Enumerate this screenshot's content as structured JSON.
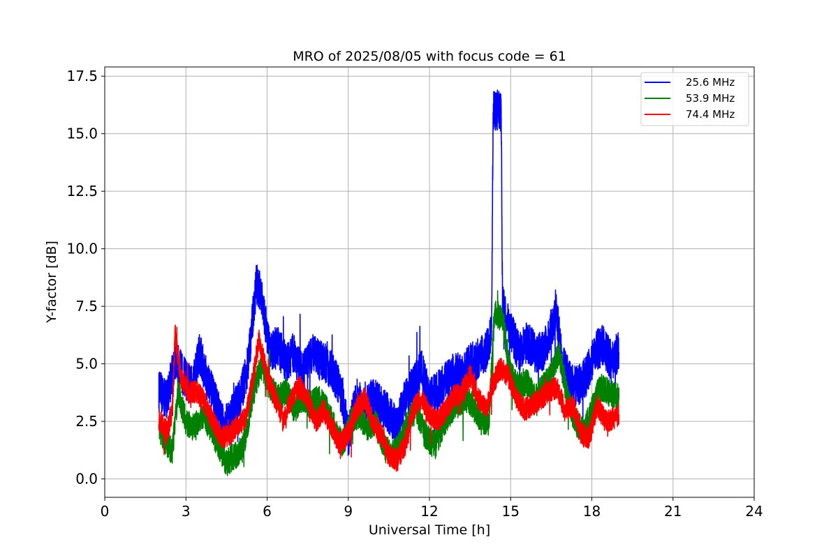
{
  "chart_data": {
    "type": "line",
    "title": "MRO of 2025/08/05 with focus code = 61",
    "xlabel": "Universal Time [h]",
    "ylabel": "Y-factor [dB]",
    "xlim": [
      0,
      24
    ],
    "ylim": [
      -0.8,
      17.9
    ],
    "xticks": [
      0,
      3,
      6,
      9,
      12,
      15,
      18,
      21,
      24
    ],
    "yticks": [
      0.0,
      2.5,
      5.0,
      7.5,
      10.0,
      12.5,
      15.0,
      17.5
    ],
    "xtick_labels": [
      "0",
      "3",
      "6",
      "9",
      "12",
      "15",
      "18",
      "21",
      "24"
    ],
    "ytick_labels": [
      "0.0",
      "2.5",
      "5.0",
      "7.5",
      "10.0",
      "12.5",
      "15.0",
      "17.5"
    ],
    "grid": true,
    "legend_position": "top-right",
    "series": [
      {
        "name": "25.6 MHz",
        "color": "#0000ff",
        "noise": 0.9,
        "points": [
          [
            2.0,
            3.8
          ],
          [
            2.3,
            3.5
          ],
          [
            2.6,
            5.2
          ],
          [
            2.9,
            4.5
          ],
          [
            3.2,
            4.0
          ],
          [
            3.5,
            5.5
          ],
          [
            3.8,
            4.2
          ],
          [
            4.1,
            3.3
          ],
          [
            4.4,
            2.2
          ],
          [
            4.7,
            2.8
          ],
          [
            5.0,
            3.5
          ],
          [
            5.3,
            5.0
          ],
          [
            5.6,
            8.5
          ],
          [
            5.8,
            8.0
          ],
          [
            6.1,
            5.5
          ],
          [
            6.4,
            5.8
          ],
          [
            6.7,
            5.0
          ],
          [
            7.0,
            5.5
          ],
          [
            7.3,
            4.5
          ],
          [
            7.6,
            5.5
          ],
          [
            7.9,
            5.2
          ],
          [
            8.2,
            5.0
          ],
          [
            8.5,
            4.5
          ],
          [
            8.8,
            3.5
          ],
          [
            9.0,
            1.8
          ],
          [
            9.3,
            3.5
          ],
          [
            9.6,
            3.0
          ],
          [
            9.9,
            3.5
          ],
          [
            10.2,
            3.2
          ],
          [
            10.5,
            2.8
          ],
          [
            10.8,
            2.2
          ],
          [
            11.1,
            3.5
          ],
          [
            11.4,
            4.0
          ],
          [
            11.7,
            4.8
          ],
          [
            12.0,
            3.5
          ],
          [
            12.3,
            3.8
          ],
          [
            12.6,
            4.2
          ],
          [
            12.9,
            4.6
          ],
          [
            13.2,
            4.5
          ],
          [
            13.5,
            5.0
          ],
          [
            13.8,
            5.2
          ],
          [
            14.1,
            5.5
          ],
          [
            14.3,
            6.5
          ],
          [
            14.35,
            16.0
          ],
          [
            14.65,
            16.0
          ],
          [
            14.7,
            7.5
          ],
          [
            15.0,
            6.5
          ],
          [
            15.3,
            5.5
          ],
          [
            15.6,
            6.0
          ],
          [
            15.9,
            5.5
          ],
          [
            16.2,
            5.5
          ],
          [
            16.5,
            6.5
          ],
          [
            16.7,
            7.2
          ],
          [
            16.9,
            5.0
          ],
          [
            17.2,
            4.2
          ],
          [
            17.5,
            4.0
          ],
          [
            17.8,
            4.5
          ],
          [
            18.1,
            5.5
          ],
          [
            18.4,
            5.8
          ],
          [
            18.7,
            5.2
          ],
          [
            19.0,
            5.5
          ]
        ]
      },
      {
        "name": "53.9 MHz",
        "color": "#008000",
        "noise": 0.6,
        "points": [
          [
            2.0,
            2.2
          ],
          [
            2.3,
            1.5
          ],
          [
            2.5,
            1.2
          ],
          [
            2.7,
            3.8
          ],
          [
            3.0,
            2.5
          ],
          [
            3.3,
            2.2
          ],
          [
            3.6,
            2.8
          ],
          [
            3.9,
            2.2
          ],
          [
            4.2,
            1.5
          ],
          [
            4.5,
            0.7
          ],
          [
            4.8,
            1.0
          ],
          [
            5.1,
            1.3
          ],
          [
            5.3,
            2.5
          ],
          [
            5.5,
            3.8
          ],
          [
            5.8,
            5.0
          ],
          [
            6.1,
            4.0
          ],
          [
            6.4,
            3.5
          ],
          [
            6.7,
            3.8
          ],
          [
            7.0,
            3.0
          ],
          [
            7.3,
            3.5
          ],
          [
            7.6,
            3.2
          ],
          [
            7.9,
            3.5
          ],
          [
            8.2,
            3.0
          ],
          [
            8.5,
            2.2
          ],
          [
            8.8,
            1.5
          ],
          [
            9.1,
            2.5
          ],
          [
            9.4,
            2.8
          ],
          [
            9.7,
            2.2
          ],
          [
            10.0,
            2.5
          ],
          [
            10.3,
            1.5
          ],
          [
            10.6,
            1.0
          ],
          [
            10.9,
            1.5
          ],
          [
            11.2,
            2.5
          ],
          [
            11.5,
            3.0
          ],
          [
            11.8,
            2.0
          ],
          [
            12.1,
            1.5
          ],
          [
            12.4,
            2.0
          ],
          [
            12.7,
            2.8
          ],
          [
            13.0,
            3.2
          ],
          [
            13.3,
            3.5
          ],
          [
            13.6,
            3.2
          ],
          [
            13.9,
            2.5
          ],
          [
            14.2,
            2.5
          ],
          [
            14.4,
            7.2
          ],
          [
            14.7,
            7.0
          ],
          [
            15.0,
            4.5
          ],
          [
            15.3,
            4.0
          ],
          [
            15.6,
            4.2
          ],
          [
            15.9,
            3.5
          ],
          [
            16.2,
            4.0
          ],
          [
            16.5,
            4.5
          ],
          [
            16.8,
            5.5
          ],
          [
            17.1,
            3.5
          ],
          [
            17.4,
            2.5
          ],
          [
            17.7,
            2.0
          ],
          [
            18.0,
            3.0
          ],
          [
            18.3,
            4.0
          ],
          [
            18.6,
            3.8
          ],
          [
            19.0,
            3.5
          ]
        ]
      },
      {
        "name": "74.4 MHz",
        "color": "#ff0000",
        "noise": 0.5,
        "points": [
          [
            2.0,
            2.6
          ],
          [
            2.3,
            2.0
          ],
          [
            2.5,
            3.0
          ],
          [
            2.6,
            6.3
          ],
          [
            2.8,
            4.5
          ],
          [
            3.1,
            3.8
          ],
          [
            3.4,
            3.8
          ],
          [
            3.7,
            3.3
          ],
          [
            4.0,
            2.5
          ],
          [
            4.3,
            1.8
          ],
          [
            4.6,
            1.9
          ],
          [
            4.9,
            2.3
          ],
          [
            5.2,
            2.6
          ],
          [
            5.5,
            4.5
          ],
          [
            5.7,
            6.0
          ],
          [
            6.0,
            4.5
          ],
          [
            6.3,
            3.5
          ],
          [
            6.6,
            2.5
          ],
          [
            6.9,
            3.5
          ],
          [
            7.2,
            4.0
          ],
          [
            7.5,
            3.5
          ],
          [
            7.8,
            2.5
          ],
          [
            8.1,
            3.0
          ],
          [
            8.4,
            2.2
          ],
          [
            8.7,
            1.5
          ],
          [
            9.0,
            2.0
          ],
          [
            9.3,
            3.0
          ],
          [
            9.6,
            3.5
          ],
          [
            9.9,
            2.5
          ],
          [
            10.2,
            2.0
          ],
          [
            10.5,
            1.0
          ],
          [
            10.8,
            0.8
          ],
          [
            11.1,
            1.5
          ],
          [
            11.4,
            3.0
          ],
          [
            11.7,
            3.5
          ],
          [
            12.0,
            2.8
          ],
          [
            12.3,
            2.5
          ],
          [
            12.6,
            3.0
          ],
          [
            12.9,
            3.6
          ],
          [
            13.2,
            3.8
          ],
          [
            13.5,
            4.5
          ],
          [
            13.8,
            3.5
          ],
          [
            14.1,
            3.0
          ],
          [
            14.3,
            4.0
          ],
          [
            14.6,
            4.8
          ],
          [
            14.9,
            4.5
          ],
          [
            15.2,
            3.5
          ],
          [
            15.5,
            3.0
          ],
          [
            15.8,
            3.2
          ],
          [
            16.1,
            3.5
          ],
          [
            16.4,
            3.8
          ],
          [
            16.7,
            4.0
          ],
          [
            17.0,
            3.0
          ],
          [
            17.3,
            3.2
          ],
          [
            17.6,
            2.0
          ],
          [
            17.9,
            1.8
          ],
          [
            18.2,
            3.2
          ],
          [
            18.5,
            2.5
          ],
          [
            18.8,
            2.6
          ],
          [
            19.0,
            2.8
          ]
        ]
      }
    ]
  }
}
